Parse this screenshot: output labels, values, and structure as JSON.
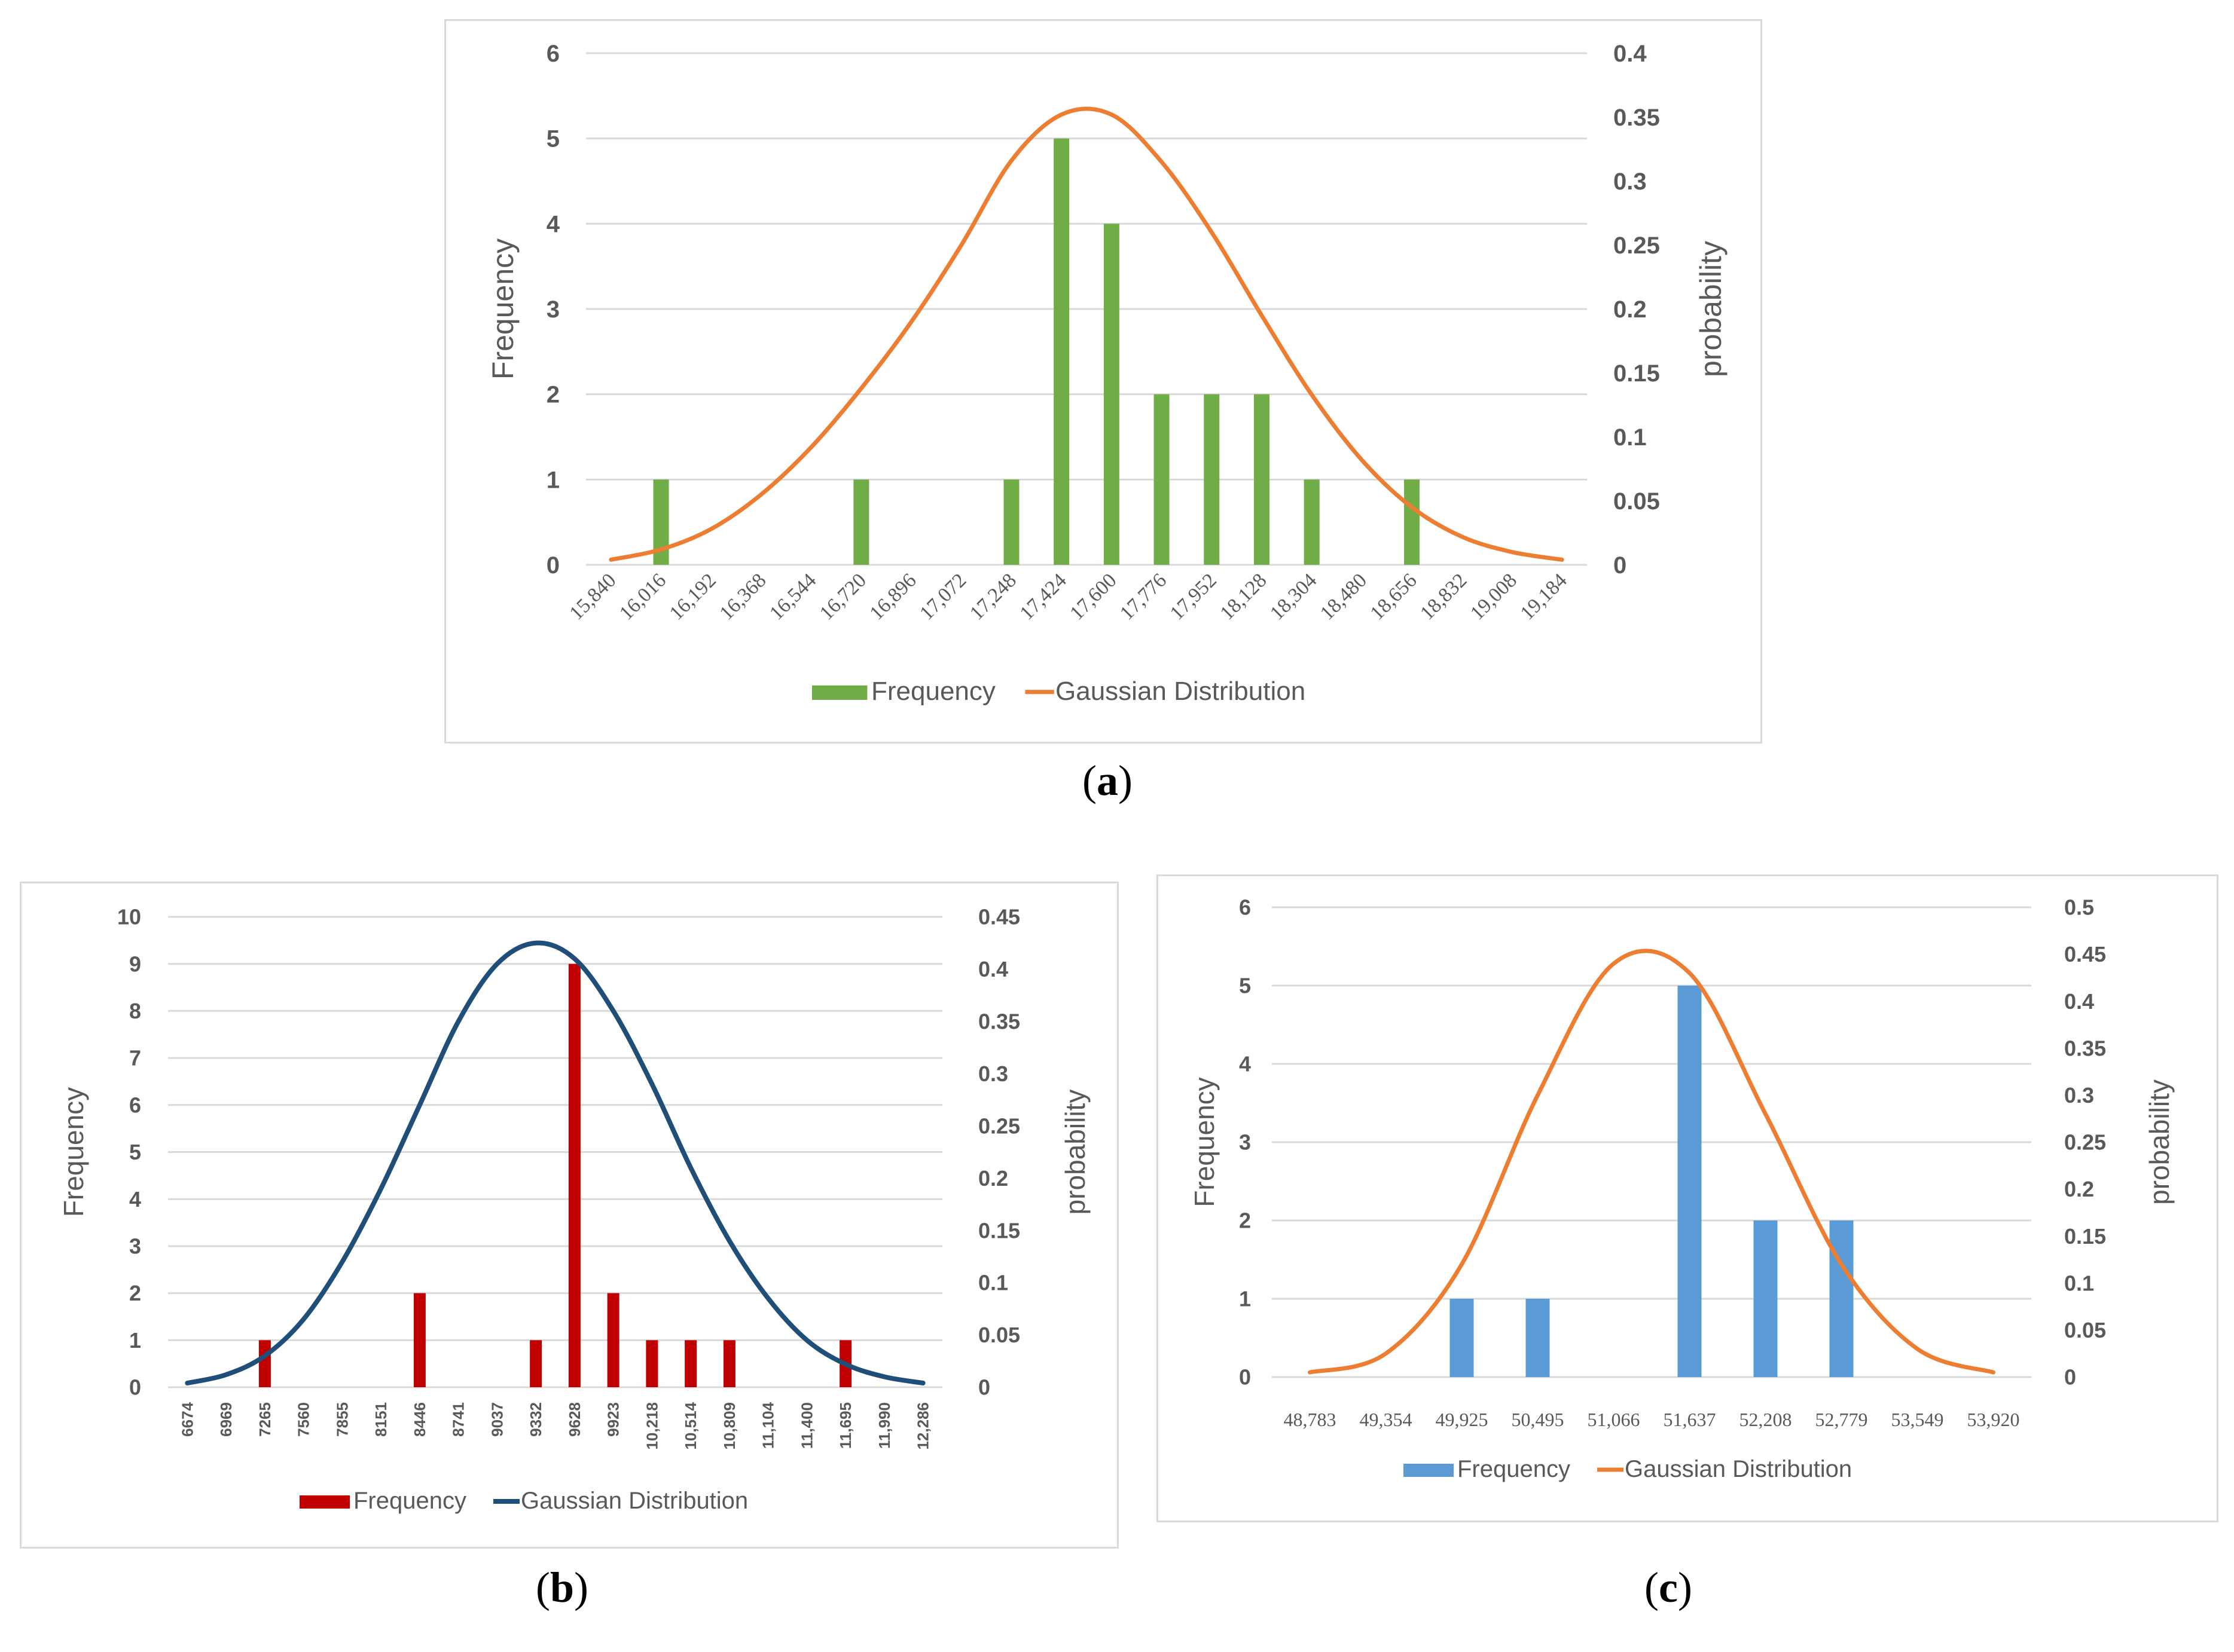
{
  "captions": [
    "(a)",
    "(b)",
    "(c)"
  ],
  "colors": {
    "grid": "#d9d9d9",
    "axis_text": "#595959",
    "panel_border": "#d9d9d9"
  },
  "chart_data": [
    {
      "type": "bar",
      "id": "a",
      "categories": [
        "15,840",
        "16,016",
        "16,192",
        "16,368",
        "16,544",
        "16,720",
        "16,896",
        "17,072",
        "17,248",
        "17,424",
        "17,600",
        "17,776",
        "17,952",
        "18,128",
        "18,304",
        "18,480",
        "18,656",
        "18,832",
        "19,008",
        "19,184"
      ],
      "series": [
        {
          "name": "Frequency",
          "type": "bar",
          "axis": "left",
          "color": "#70ad47",
          "values": [
            0,
            1,
            0,
            0,
            0,
            1,
            0,
            0,
            1,
            5,
            4,
            2,
            2,
            2,
            1,
            0,
            1,
            0,
            0,
            0
          ]
        },
        {
          "name": "Gaussian Distribution",
          "type": "line",
          "axis": "right",
          "color": "#ed7d31",
          "values": [
            0.004,
            0.012,
            0.028,
            0.055,
            0.092,
            0.138,
            0.19,
            0.25,
            0.316,
            0.352,
            0.352,
            0.315,
            0.26,
            0.195,
            0.133,
            0.082,
            0.045,
            0.022,
            0.01,
            0.004
          ]
        }
      ],
      "ylabel": "Frequency",
      "y2label": "probability",
      "ylim": [
        0,
        6
      ],
      "y_ticks": [
        "0",
        "1",
        "2",
        "3",
        "4",
        "5",
        "6"
      ],
      "y2lim": [
        0,
        0.4
      ],
      "y2_ticks": [
        "0",
        "0.05",
        "0.1",
        "0.15",
        "0.2",
        "0.25",
        "0.3",
        "0.35",
        "0.4"
      ],
      "grid": true,
      "legend": "bottom"
    },
    {
      "type": "bar",
      "id": "b",
      "categories": [
        "6674",
        "6969",
        "7265",
        "7560",
        "7855",
        "8151",
        "8446",
        "8741",
        "9037",
        "9332",
        "9628",
        "9923",
        "10,218",
        "10,514",
        "10,809",
        "11,104",
        "11,400",
        "11,695",
        "11,990",
        "12,286"
      ],
      "series": [
        {
          "name": "Frequency",
          "type": "bar",
          "axis": "left",
          "color": "#c00000",
          "values": [
            0,
            0,
            1,
            0,
            0,
            0,
            2,
            0,
            0,
            1,
            9,
            2,
            1,
            1,
            1,
            0,
            0,
            1,
            0,
            0
          ]
        },
        {
          "name": "Gaussian Distribution",
          "type": "line",
          "axis": "right",
          "color": "#1f4e79",
          "values": [
            0.004,
            0.012,
            0.03,
            0.065,
            0.12,
            0.19,
            0.27,
            0.35,
            0.405,
            0.425,
            0.41,
            0.36,
            0.29,
            0.21,
            0.14,
            0.085,
            0.045,
            0.022,
            0.01,
            0.004
          ]
        }
      ],
      "ylabel": "Frequency",
      "y2label": "probability",
      "ylim": [
        0,
        10
      ],
      "y_ticks": [
        "0",
        "1",
        "2",
        "3",
        "4",
        "5",
        "6",
        "7",
        "8",
        "9",
        "10"
      ],
      "y2lim": [
        0,
        0.45
      ],
      "y2_ticks": [
        "0",
        "0.05",
        "0.1",
        "0.15",
        "0.2",
        "0.25",
        "0.3",
        "0.35",
        "0.4",
        "0.45"
      ],
      "grid": true,
      "legend": "bottom"
    },
    {
      "type": "bar",
      "id": "c",
      "categories": [
        "48,783",
        "49,354",
        "49,925",
        "50,495",
        "51,066",
        "51,637",
        "52,208",
        "52,779",
        "53,549",
        "53,920"
      ],
      "series": [
        {
          "name": "Frequency",
          "type": "bar",
          "axis": "left",
          "color": "#5b9bd5",
          "values": [
            0,
            0,
            1,
            1,
            0,
            5,
            2,
            2,
            0,
            0
          ]
        },
        {
          "name": "Gaussian Distribution",
          "type": "line",
          "axis": "right",
          "color": "#ed7d31",
          "values": [
            0.005,
            0.025,
            0.12,
            0.3,
            0.44,
            0.43,
            0.28,
            0.12,
            0.03,
            0.005
          ]
        }
      ],
      "ylabel": "Frequency",
      "y2label": "probability",
      "ylim": [
        0,
        6
      ],
      "y_ticks": [
        "0",
        "1",
        "2",
        "3",
        "4",
        "5",
        "6"
      ],
      "y2lim": [
        0,
        0.5
      ],
      "y2_ticks": [
        "0",
        "0.05",
        "0.1",
        "0.15",
        "0.2",
        "0.25",
        "0.3",
        "0.35",
        "0.4",
        "0.45",
        "0.5"
      ],
      "grid": true,
      "legend": "bottom"
    }
  ]
}
